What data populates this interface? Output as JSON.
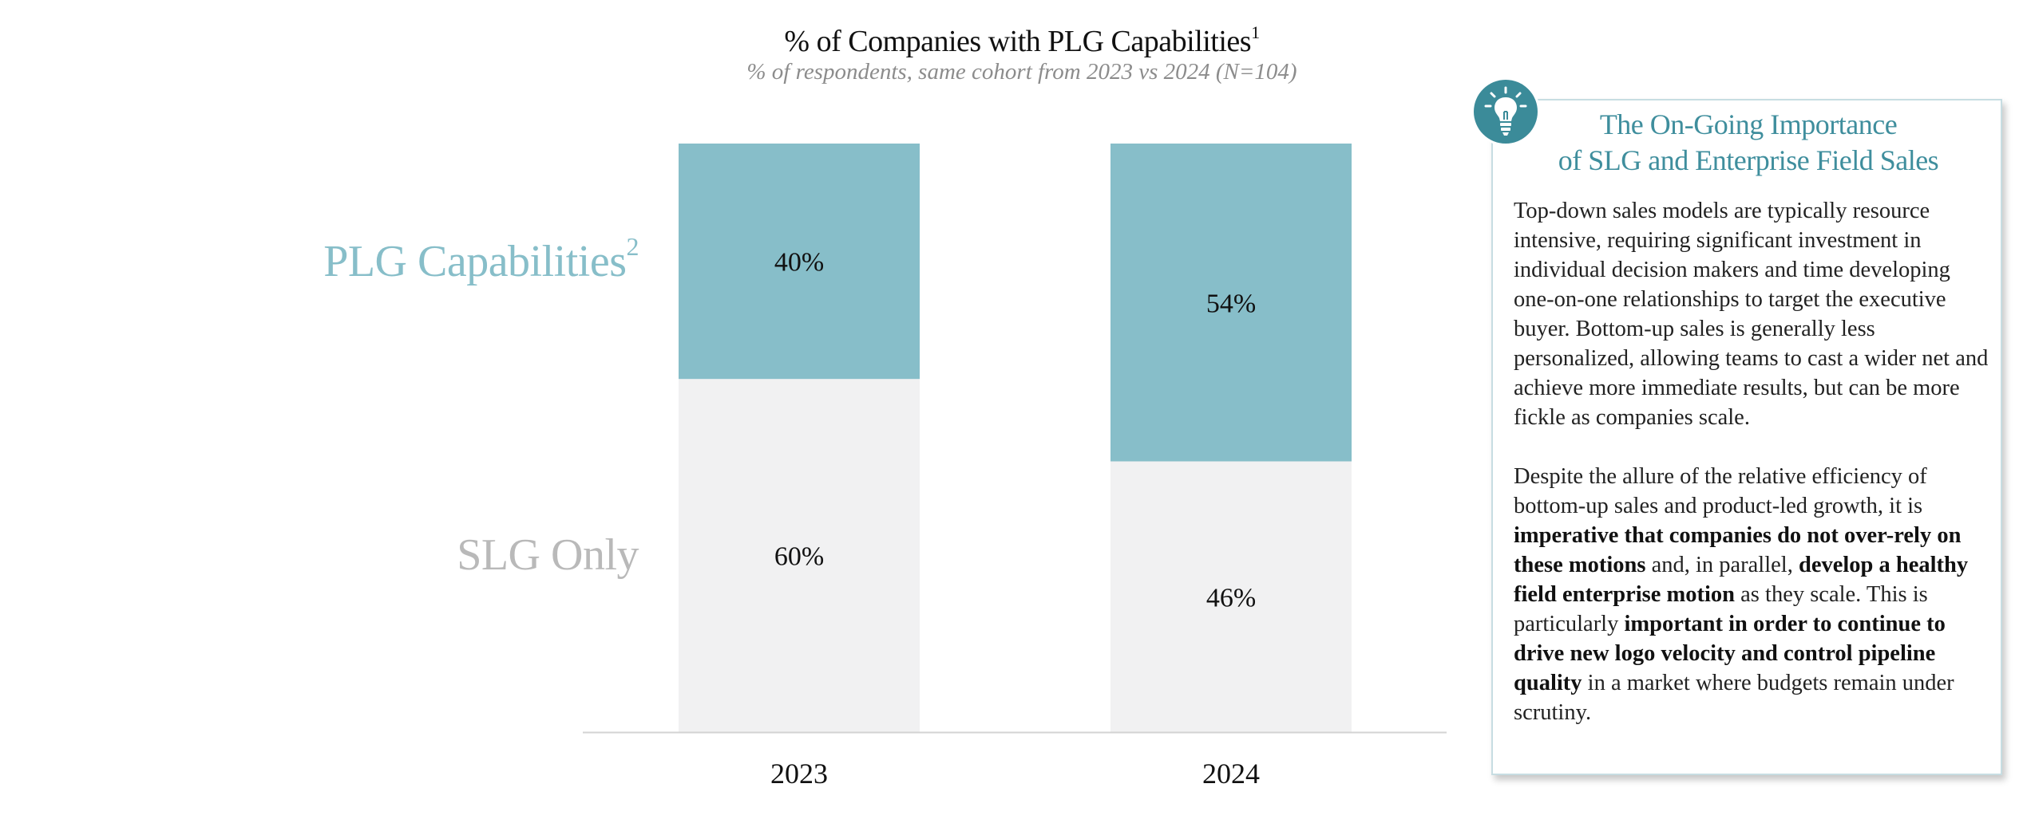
{
  "chart_data": {
    "type": "bar",
    "stacked": true,
    "title": "% of Companies with PLG Capabilities",
    "title_footnote": "1",
    "subtitle": "% of respondents, same cohort from 2023 vs 2024 (N=104)",
    "categories": [
      "2023",
      "2024"
    ],
    "series": [
      {
        "name": "SLG Only",
        "values": [
          60,
          46
        ],
        "labels": [
          "60%",
          "46%"
        ],
        "color": "#f1f1f2",
        "label_color": "#b9b9b9"
      },
      {
        "name": "PLG Capabilities",
        "name_footnote": "2",
        "values": [
          40,
          54
        ],
        "labels": [
          "40%",
          "54%"
        ],
        "color": "#87bec9",
        "label_color": "#87bec9"
      }
    ],
    "ylim": [
      0,
      100
    ],
    "grid": false,
    "legend": "left"
  },
  "callout": {
    "icon": "lightbulb-icon",
    "icon_color": "#3b8b99",
    "title_line1": "The On-Going Importance",
    "title_line2": "of SLG and Enterprise Field Sales",
    "paragraph1": "Top-down sales models are typically resource intensive, requiring significant investment in individual decision makers and time developing one-on-one relationships to target the executive buyer. Bottom-up sales is generally less personalized, allowing teams to cast a wider net and achieve more immediate results, but can be more fickle as companies scale.",
    "p2_part1": "Despite the allure of the relative efficiency of bottom-up sales and product-led growth, it is ",
    "p2_bold1": "imperative that companies do not over-rely on these motions",
    "p2_part2": " and, in parallel, ",
    "p2_bold2": "develop a healthy field enterprise motion",
    "p2_part3": " as they scale. This is particularly ",
    "p2_bold3": "important in order to continue to drive new logo velocity and control pipeline quality",
    "p2_part4": " in a market where budgets remain under scrutiny."
  }
}
